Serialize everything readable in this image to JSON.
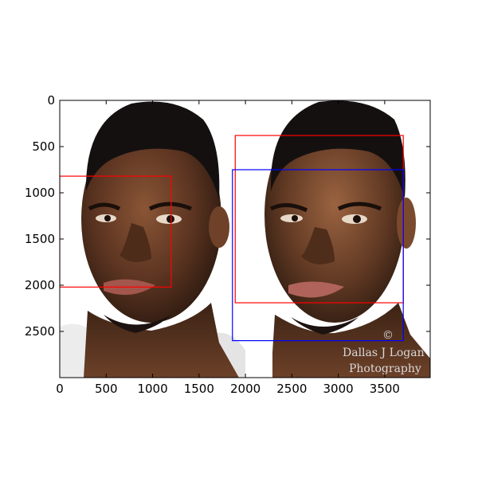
{
  "image": {
    "description_panels": [
      "left-face-photo",
      "right-face-photo"
    ],
    "watermark_lines": [
      "Dallas J Logan",
      "Photography"
    ],
    "copyright_mark": "©"
  },
  "axes": {
    "xlim": [
      0,
      3990
    ],
    "ylim_inverted": [
      3000,
      0
    ],
    "xticks": [
      0,
      500,
      1000,
      1500,
      2000,
      2500,
      3000,
      3500
    ],
    "yticks": [
      0,
      500,
      1000,
      1500,
      2000,
      2500
    ],
    "xtick_labels": [
      "0",
      "500",
      "1000",
      "1500",
      "2000",
      "2500",
      "3000",
      "3500"
    ],
    "ytick_labels": [
      "0",
      "500",
      "1000",
      "1500",
      "2000",
      "2500"
    ],
    "colors": {
      "red_box": "#ff0000",
      "blue_box": "#0000ff",
      "axis": "#000000"
    }
  },
  "boxes": [
    {
      "name": "red-box-left",
      "color": "red",
      "x0": 0,
      "y0": 820,
      "x1": 1200,
      "y1": 2020
    },
    {
      "name": "red-box-right",
      "color": "red",
      "x0": 1890,
      "y0": 380,
      "x1": 3700,
      "y1": 2190
    },
    {
      "name": "blue-box-right",
      "color": "blue",
      "x0": 1860,
      "y0": 750,
      "x1": 3700,
      "y1": 2600
    }
  ]
}
